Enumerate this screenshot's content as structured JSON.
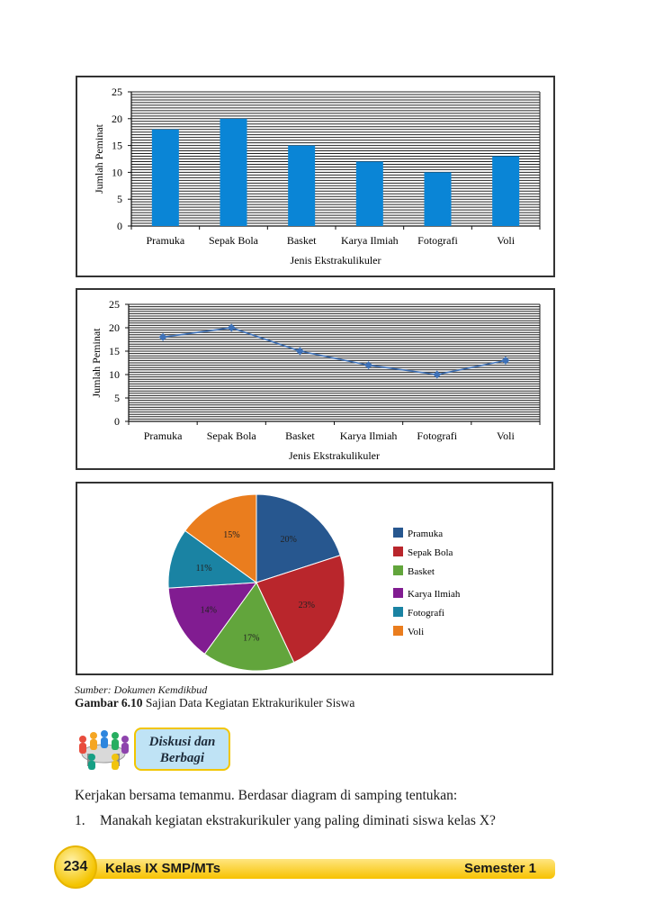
{
  "chart_data": [
    {
      "type": "bar",
      "categories": [
        "Pramuka",
        "Sepak Bola",
        "Basket",
        "Karya Ilmiah",
        "Fotografi",
        "Voli"
      ],
      "values": [
        18,
        20,
        15,
        12,
        10,
        13
      ],
      "xlabel": "Jenis Ekstrakulikuler",
      "ylabel": "Jumlah Peminat",
      "ylim": [
        0,
        25
      ],
      "yticks": [
        0,
        5,
        10,
        15,
        20,
        25
      ],
      "grid": true,
      "color": "#0a85d6"
    },
    {
      "type": "line",
      "categories": [
        "Pramuka",
        "Sepak Bola",
        "Basket",
        "Karya Ilmiah",
        "Fotografi",
        "Voli"
      ],
      "values": [
        18,
        20,
        15,
        12,
        10,
        13
      ],
      "xlabel": "Jenis Ekstrakulikuler",
      "ylabel": "Jumlah Peminat",
      "ylim": [
        0,
        25
      ],
      "yticks": [
        0,
        5,
        10,
        15,
        20,
        25
      ],
      "grid": true,
      "color": "#3f72b8"
    },
    {
      "type": "pie",
      "labels": [
        "Pramuka",
        "Sepak Bola",
        "Basket",
        "Karya Ilmiah",
        "Fotografi",
        "Voli"
      ],
      "values": [
        20,
        23,
        17,
        14,
        11,
        15
      ],
      "value_labels": [
        "20%",
        "23%",
        "17%",
        "14%",
        "11%",
        "15%"
      ],
      "colors": [
        "#27578f",
        "#b9262c",
        "#62a53c",
        "#811c91",
        "#1a83a3",
        "#ea7d1e"
      ],
      "legend": "right"
    }
  ],
  "caption": {
    "source": "Sumber: Dokumen Kemdikbud",
    "figure_label": "Gambar 6.10",
    "figure_text": "Sajian Data Kegiatan Ektrakurikuler Siswa"
  },
  "discussion": {
    "line1": "Diskusi dan",
    "line2": "Berbagi",
    "icon": "group-people-icon"
  },
  "body": {
    "intro": "Kerjakan bersama temanmu. Berdasar diagram di samping tentukan:",
    "q1_num": "1.",
    "q1_text": "Manakah kegiatan ekstrakurikuler yang paling diminati siswa kelas X?"
  },
  "footer": {
    "page_number": "234",
    "book_title": "Kelas IX SMP/MTs",
    "semester": "Semester 1"
  }
}
